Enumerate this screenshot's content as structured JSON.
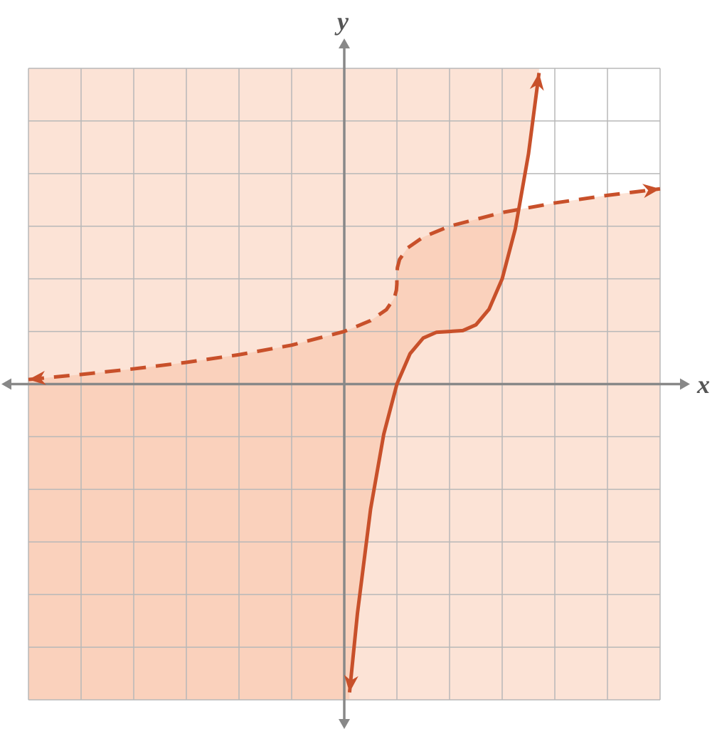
{
  "chart_data": {
    "type": "line",
    "x_label": "x",
    "y_label": "y",
    "xlim": [
      -6,
      6
    ],
    "ylim": [
      -6,
      6
    ],
    "xticks": [
      -6,
      -5,
      -4,
      -3,
      -2,
      -1,
      0,
      1,
      2,
      3,
      4,
      5,
      6
    ],
    "yticks": [
      -6,
      -5,
      -4,
      -3,
      -2,
      -1,
      0,
      1,
      2,
      3,
      4,
      5,
      6
    ],
    "tick_labels": false,
    "grid": true,
    "series": [
      {
        "color": "#c8502a",
        "dashed": true,
        "fill": "below",
        "fill_color": "#f6b594",
        "x": [
          -6,
          -5,
          -4,
          -3,
          -2,
          -1,
          0,
          0.5,
          0.8,
          0.95,
          0.99,
          0.999,
          1,
          1.001,
          1.01,
          1.05,
          1.2,
          1.5,
          2,
          3,
          4,
          5,
          6
        ],
        "values": [
          0.087,
          0.183,
          0.29,
          0.413,
          0.558,
          0.74,
          1,
          1.206,
          1.415,
          1.632,
          1.785,
          1.9,
          2,
          2.1,
          2.215,
          2.368,
          2.585,
          2.794,
          3,
          3.26,
          3.442,
          3.587,
          3.71
        ]
      },
      {
        "color": "#c8502a",
        "dashed": false,
        "fill": "above",
        "fill_color": "#f6b594",
        "x": [
          0.1,
          0.25,
          0.5,
          0.75,
          1,
          1.25,
          1.5,
          1.75,
          2,
          2.25,
          2.5,
          2.75,
          3,
          3.25,
          3.5,
          3.7
        ],
        "values": [
          -5.86,
          -4.359,
          -2.375,
          -0.953,
          0,
          0.578,
          0.875,
          0.984,
          1,
          1.016,
          1.125,
          1.422,
          2,
          2.953,
          4.375,
          5.913
        ]
      }
    ]
  }
}
